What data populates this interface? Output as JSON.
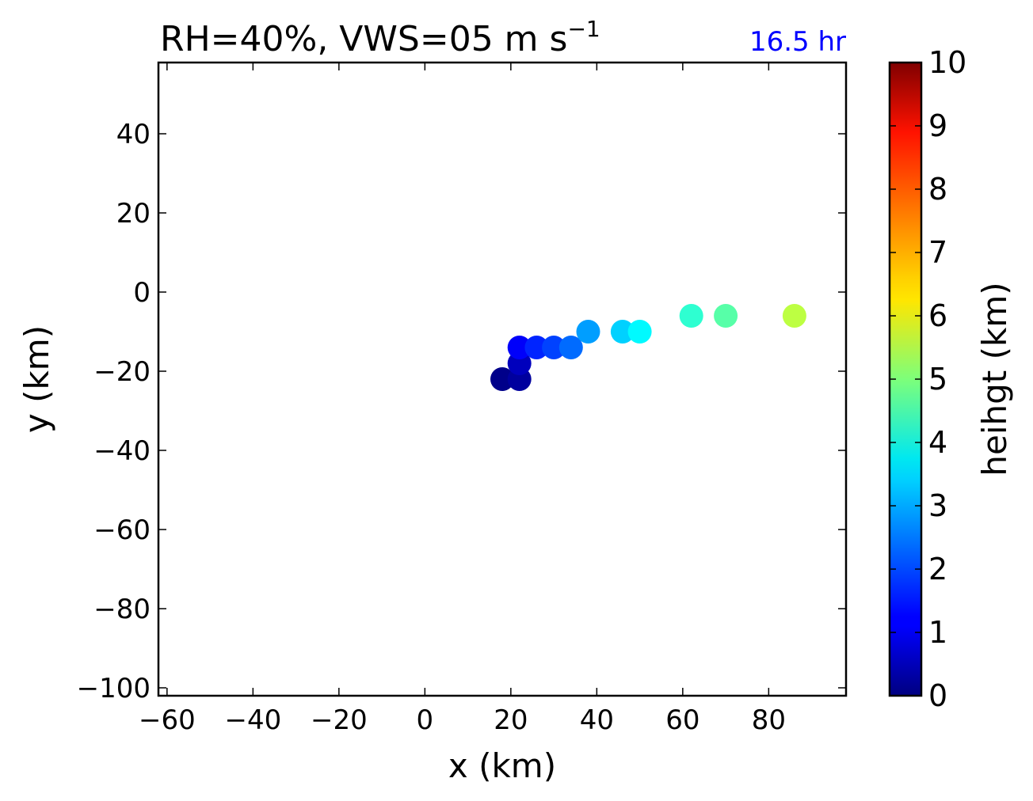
{
  "chart_data": {
    "type": "scatter",
    "title": "RH=40%, VWS=05 m s",
    "title_superscript": "−1",
    "annotation": {
      "text": "16.5 hr",
      "color": "#0000ff",
      "placement": "top-right"
    },
    "xlabel": "x (km)",
    "ylabel": "y (km)",
    "xlim": [
      -62,
      98
    ],
    "ylim": [
      -102,
      58
    ],
    "xticks": [
      -60,
      -40,
      -20,
      0,
      20,
      40,
      60,
      80
    ],
    "yticks": [
      -100,
      -80,
      -60,
      -40,
      -20,
      0,
      20,
      40
    ],
    "grid": false,
    "colorbar": {
      "label": "heihgt (km)",
      "range": [
        0,
        10
      ],
      "ticks": [
        0,
        1,
        2,
        3,
        4,
        5,
        6,
        7,
        8,
        9,
        10
      ],
      "colormap": "jet"
    },
    "points": [
      {
        "x": 18,
        "y": -22,
        "height": 0.1
      },
      {
        "x": 22,
        "y": -22,
        "height": 0.3
      },
      {
        "x": 22,
        "y": -18,
        "height": 0.6
      },
      {
        "x": 22,
        "y": -14,
        "height": 1.2
      },
      {
        "x": 26,
        "y": -14,
        "height": 1.6
      },
      {
        "x": 30,
        "y": -14,
        "height": 1.9
      },
      {
        "x": 34,
        "y": -14,
        "height": 2.3
      },
      {
        "x": 38,
        "y": -10,
        "height": 2.8
      },
      {
        "x": 46,
        "y": -10,
        "height": 3.3
      },
      {
        "x": 50,
        "y": -10,
        "height": 3.7
      },
      {
        "x": 62,
        "y": -6,
        "height": 4.2
      },
      {
        "x": 70,
        "y": -6,
        "height": 4.6
      },
      {
        "x": 86,
        "y": -6,
        "height": 5.6
      }
    ]
  }
}
